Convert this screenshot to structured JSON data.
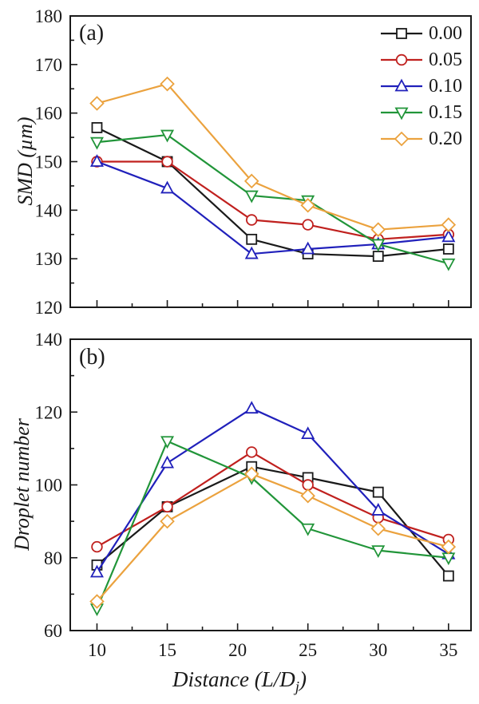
{
  "figure": {
    "xlabel_pre": "Distance (L/D",
    "xlabel_sub": "j",
    "xlabel_post": ")",
    "background": "#ffffff",
    "axis_color": "#1a1a1a"
  },
  "chart_data": [
    {
      "type": "line",
      "panel_label": "(a)",
      "ylabel": "SMD (µm)",
      "xlabel": "Distance (L/Dj)",
      "ylim": [
        120,
        180
      ],
      "y_major_ticks": [
        120,
        130,
        140,
        150,
        160,
        170,
        180
      ],
      "y_minor_ticks": [
        125,
        135,
        145,
        155,
        165,
        175
      ],
      "xlim": [
        8.1,
        36.6
      ],
      "x_major_ticks": [
        10,
        15,
        20,
        25,
        30,
        35
      ],
      "x_minor_ticks": [
        12.5,
        17.5,
        22.5,
        27.5,
        32.5
      ],
      "x_tick_labels_visible": false,
      "legend_visible": true,
      "grid": false,
      "x": [
        10,
        15,
        21,
        25,
        30,
        35
      ],
      "series": [
        {
          "name": "0.00",
          "color": "#1a1a1a",
          "marker": "square",
          "values": [
            157,
            150,
            134,
            131,
            130.5,
            132
          ]
        },
        {
          "name": "0.05",
          "color": "#c0201e",
          "marker": "circle",
          "values": [
            150,
            150,
            138,
            137,
            134,
            135
          ]
        },
        {
          "name": "0.10",
          "color": "#2020bb",
          "marker": "triangle-up",
          "values": [
            150,
            144.5,
            131,
            132,
            133,
            134.5
          ]
        },
        {
          "name": "0.15",
          "color": "#219539",
          "marker": "triangle-down",
          "values": [
            154,
            155.5,
            143,
            142,
            133,
            129
          ]
        },
        {
          "name": "0.20",
          "color": "#eba23e",
          "marker": "diamond",
          "values": [
            162,
            166,
            146,
            141,
            136,
            137
          ]
        }
      ]
    },
    {
      "type": "line",
      "panel_label": "(b)",
      "ylabel": "Droplet number",
      "xlabel": "Distance (L/Dj)",
      "ylim": [
        60,
        140
      ],
      "y_major_ticks": [
        60,
        80,
        100,
        120,
        140
      ],
      "y_minor_ticks": [
        70,
        90,
        110,
        130
      ],
      "xlim": [
        8.1,
        36.6
      ],
      "x_major_ticks": [
        10,
        15,
        20,
        25,
        30,
        35
      ],
      "x_minor_ticks": [
        12.5,
        17.5,
        22.5,
        27.5,
        32.5
      ],
      "x_tick_labels_visible": true,
      "legend_visible": false,
      "grid": false,
      "x": [
        10,
        15,
        21,
        25,
        30,
        35
      ],
      "series": [
        {
          "name": "0.00",
          "color": "#1a1a1a",
          "marker": "square",
          "values": [
            78,
            94,
            105,
            102,
            98,
            75
          ]
        },
        {
          "name": "0.05",
          "color": "#c0201e",
          "marker": "circle",
          "values": [
            83,
            94,
            109,
            100,
            91,
            85
          ]
        },
        {
          "name": "0.10",
          "color": "#2020bb",
          "marker": "triangle-up",
          "values": [
            76,
            106,
            121,
            114,
            93,
            81
          ]
        },
        {
          "name": "0.15",
          "color": "#219539",
          "marker": "triangle-down",
          "values": [
            66,
            112,
            102,
            88,
            82,
            80
          ]
        },
        {
          "name": "0.20",
          "color": "#eba23e",
          "marker": "diamond",
          "values": [
            68,
            90,
            103,
            97,
            88,
            83
          ]
        }
      ]
    }
  ]
}
